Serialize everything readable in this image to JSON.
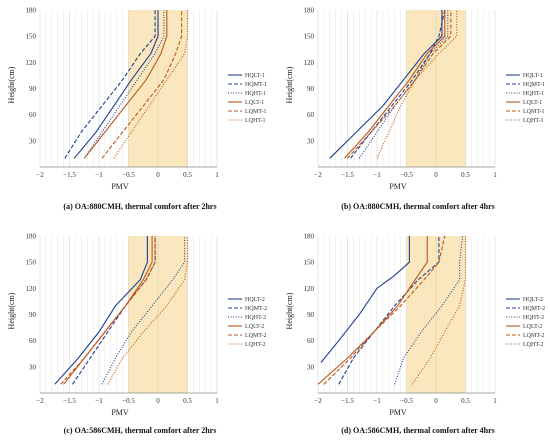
{
  "chart_data": [
    {
      "type": "line",
      "caption": "(a) OA:880CMH, thermal comfort after 2hrs",
      "xlabel": "PMV",
      "ylabel": "Height(cm)",
      "xlim": [
        -2,
        1
      ],
      "ylim": [
        0,
        180
      ],
      "xticks": [
        "−2",
        "−1.5",
        "−1",
        "−0.5",
        "0",
        "0.5",
        "1"
      ],
      "yticks": [
        "30",
        "60",
        "90",
        "120",
        "150",
        "180"
      ],
      "comfort_band": [
        -0.5,
        0.5
      ],
      "grid": "vertical",
      "legend_position": "right",
      "series": [
        {
          "name": "HQLT-1",
          "x": [
            -1.42,
            -1.05,
            -0.75,
            -0.45,
            -0.12,
            0.0,
            0.0
          ],
          "y": [
            10,
            40,
            70,
            100,
            130,
            150,
            180
          ]
        },
        {
          "name": "HQMT-1",
          "x": [
            -1.58,
            -1.3,
            -0.95,
            -0.6,
            -0.3,
            -0.05,
            -0.05
          ],
          "y": [
            10,
            40,
            70,
            100,
            130,
            150,
            180
          ]
        },
        {
          "name": "HQHT-1",
          "x": [
            -1.25,
            -0.95,
            -0.65,
            -0.35,
            -0.05,
            0.1,
            0.1
          ],
          "y": [
            10,
            40,
            70,
            100,
            130,
            150,
            180
          ]
        },
        {
          "name": "LQLT-1",
          "x": [
            -1.25,
            -0.9,
            -0.55,
            -0.2,
            0.05,
            0.15,
            0.15
          ],
          "y": [
            10,
            40,
            70,
            100,
            130,
            150,
            180
          ]
        },
        {
          "name": "LQMT-1",
          "x": [
            -0.95,
            -0.6,
            -0.25,
            0.1,
            0.3,
            0.4,
            0.4
          ],
          "y": [
            10,
            40,
            70,
            100,
            130,
            150,
            180
          ]
        },
        {
          "name": "LQHT-1",
          "x": [
            -0.75,
            -0.45,
            -0.15,
            0.15,
            0.45,
            0.5,
            0.5
          ],
          "y": [
            10,
            40,
            70,
            100,
            130,
            150,
            180
          ]
        }
      ]
    },
    {
      "type": "line",
      "caption": "(b) OA:880CMH, thermal comfort after 4hrs",
      "xlabel": "PMV",
      "ylabel": "Height(cm)",
      "xlim": [
        -2,
        1
      ],
      "ylim": [
        0,
        180
      ],
      "xticks": [
        "−2",
        "−1.5",
        "−1",
        "−0.5",
        "0",
        "0.5",
        "1"
      ],
      "yticks": [
        "30",
        "60",
        "90",
        "120",
        "150",
        "180"
      ],
      "comfort_band": [
        -0.5,
        0.5
      ],
      "grid": "vertical",
      "legend_position": "right",
      "series": [
        {
          "name": "HQLT-1",
          "x": [
            -1.8,
            -1.35,
            -0.9,
            -0.55,
            -0.2,
            0.1,
            0.1
          ],
          "y": [
            10,
            40,
            70,
            100,
            130,
            150,
            180
          ]
        },
        {
          "name": "HQMT-1",
          "x": [
            -1.45,
            -1.1,
            -0.75,
            -0.4,
            -0.1,
            0.05,
            0.15
          ],
          "y": [
            10,
            40,
            70,
            100,
            130,
            150,
            180
          ]
        },
        {
          "name": "HQHT-1",
          "x": [
            -1.3,
            -1.0,
            -0.7,
            -0.35,
            -0.1,
            0.2,
            0.2
          ],
          "y": [
            10,
            40,
            70,
            100,
            130,
            150,
            180
          ]
        },
        {
          "name": "LQLT-1",
          "x": [
            -1.55,
            -1.15,
            -0.8,
            -0.45,
            -0.15,
            0.15,
            0.15
          ],
          "y": [
            10,
            40,
            70,
            100,
            130,
            150,
            180
          ]
        },
        {
          "name": "LQMT-1",
          "x": [
            -1.5,
            -1.1,
            -0.7,
            -0.35,
            -0.05,
            0.25,
            0.25
          ],
          "y": [
            10,
            40,
            70,
            100,
            130,
            150,
            180
          ]
        },
        {
          "name": "LQHT-1",
          "x": [
            -1.0,
            -0.8,
            -0.6,
            -0.35,
            0.05,
            0.35,
            0.35
          ],
          "y": [
            10,
            40,
            70,
            100,
            130,
            150,
            180
          ]
        }
      ]
    },
    {
      "type": "line",
      "caption": "(c) OA:586CMH, thermal comfort after 2hrs",
      "xlabel": "PMV",
      "ylabel": "Height(cm)",
      "xlim": [
        -2,
        1
      ],
      "ylim": [
        0,
        180
      ],
      "xticks": [
        "−2",
        "−1.5",
        "−1",
        "−0.5",
        "0",
        "0.5",
        "1"
      ],
      "yticks": [
        "30",
        "60",
        "90",
        "120",
        "150",
        "180"
      ],
      "comfort_band": [
        -0.5,
        0.5
      ],
      "grid": "vertical",
      "legend_position": "right",
      "series": [
        {
          "name": "HQLT-2",
          "x": [
            -1.75,
            -1.35,
            -1.0,
            -0.72,
            -0.3,
            -0.18,
            -0.18
          ],
          "y": [
            10,
            40,
            70,
            100,
            130,
            150,
            180
          ]
        },
        {
          "name": "HQMT-2",
          "x": [
            -1.45,
            -1.15,
            -0.85,
            -0.55,
            -0.2,
            -0.05,
            -0.05
          ],
          "y": [
            10,
            40,
            70,
            100,
            130,
            150,
            180
          ]
        },
        {
          "name": "HQHT-2",
          "x": [
            -0.95,
            -0.72,
            -0.45,
            -0.1,
            0.25,
            0.45,
            0.45
          ],
          "y": [
            10,
            40,
            70,
            100,
            130,
            150,
            180
          ]
        },
        {
          "name": "LQLT-2",
          "x": [
            -1.6,
            -1.25,
            -0.9,
            -0.55,
            -0.25,
            -0.1,
            -0.1
          ],
          "y": [
            10,
            40,
            70,
            100,
            130,
            150,
            180
          ]
        },
        {
          "name": "LQMT-2",
          "x": [
            -1.65,
            -1.25,
            -0.9,
            -0.55,
            -0.2,
            -0.05,
            -0.05
          ],
          "y": [
            10,
            40,
            70,
            100,
            130,
            150,
            180
          ]
        },
        {
          "name": "LQHT-2",
          "x": [
            -0.85,
            -0.6,
            -0.25,
            0.15,
            0.45,
            0.5,
            0.5
          ],
          "y": [
            10,
            40,
            70,
            100,
            130,
            150,
            180
          ]
        }
      ]
    },
    {
      "type": "line",
      "caption": "(d) OA:586CMH, thermal comfort after 4hrs",
      "xlabel": "PMV",
      "ylabel": "Height(cm)",
      "xlim": [
        -2,
        1
      ],
      "ylim": [
        0,
        180
      ],
      "xticks": [
        "−2",
        "−1.5",
        "−1",
        "−0.5",
        "0",
        "0.5",
        "1"
      ],
      "yticks": [
        "30",
        "60",
        "90",
        "120",
        "150",
        "180"
      ],
      "comfort_band": [
        -0.5,
        0.5
      ],
      "grid": "vertical",
      "legend_position": "right",
      "series": [
        {
          "name": "HQLT-2",
          "x": [
            -1.95,
            -1.65,
            -1.3,
            -1.0,
            -0.7,
            -0.45,
            -0.45
          ],
          "y": [
            35,
            60,
            90,
            120,
            135,
            150,
            180
          ]
        },
        {
          "name": "HQMT-2",
          "x": [
            -1.65,
            -1.4,
            -1.05,
            -0.7,
            -0.3,
            0.05,
            0.05
          ],
          "y": [
            10,
            40,
            70,
            100,
            130,
            150,
            180
          ]
        },
        {
          "name": "HQHT-2",
          "x": [
            -0.7,
            -0.55,
            -0.25,
            0.1,
            0.4,
            0.4,
            0.45
          ],
          "y": [
            10,
            40,
            70,
            100,
            130,
            150,
            180
          ]
        },
        {
          "name": "LQLT-2",
          "x": [
            -2.0,
            -1.5,
            -1.05,
            -0.65,
            -0.35,
            -0.15,
            -0.15
          ],
          "y": [
            10,
            40,
            70,
            100,
            130,
            150,
            180
          ]
        },
        {
          "name": "LQMT-2",
          "x": [
            -1.9,
            -1.45,
            -1.05,
            -0.6,
            -0.2,
            0.05,
            0.15
          ],
          "y": [
            10,
            40,
            70,
            100,
            130,
            150,
            180
          ]
        },
        {
          "name": "LQHT-2",
          "x": [
            -0.4,
            -0.1,
            0.15,
            0.4,
            0.5,
            0.5,
            0.5
          ],
          "y": [
            10,
            40,
            70,
            100,
            130,
            150,
            180
          ]
        }
      ]
    }
  ],
  "series_styles": {
    "colors": [
      "#1f3f8f",
      "#1f3f8f",
      "#1f3f8f",
      "#c0561a",
      "#c0561a",
      "#c0561a"
    ],
    "dashes": [
      "solid",
      "dashed",
      "dotted",
      "solid",
      "dashed",
      "dotted"
    ]
  },
  "band_color": "#fbe7b9"
}
